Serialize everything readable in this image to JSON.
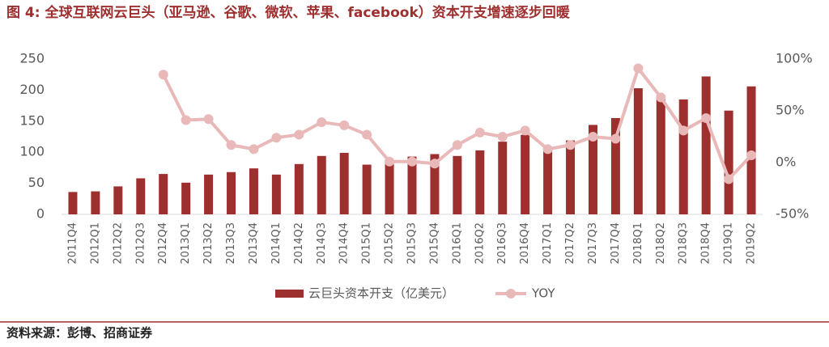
{
  "chart_data": {
    "type": "bar_line",
    "title": "图 4:  全球互联网云巨头（亚马逊、谷歌、微软、苹果、facebook）资本开支增速逐步回暖",
    "source": "资料来源：彭博、招商证券",
    "categories": [
      "2011Q4",
      "2012Q1",
      "2012Q2",
      "2012Q3",
      "2012Q4",
      "2013Q1",
      "2013Q2",
      "2013Q3",
      "2013Q4",
      "2014Q1",
      "2014Q2",
      "2014Q3",
      "2014Q4",
      "2015Q1",
      "2015Q2",
      "2015Q3",
      "2015Q4",
      "2016Q1",
      "2016Q2",
      "2016Q3",
      "2016Q4",
      "2017Q1",
      "2017Q2",
      "2017Q3",
      "2017Q4",
      "2018Q1",
      "2018Q2",
      "2018Q3",
      "2018Q4",
      "2019Q1",
      "2019Q2"
    ],
    "series": [
      {
        "name": "云巨头资本开支（亿美元）",
        "type": "bar",
        "color": "#9e2f2f",
        "values": [
          36,
          37,
          45,
          58,
          65,
          51,
          64,
          68,
          74,
          64,
          81,
          94,
          99,
          80,
          86,
          93,
          97,
          94,
          103,
          117,
          128,
          107,
          119,
          144,
          155,
          203,
          190,
          185,
          222,
          167,
          206
        ]
      },
      {
        "name": "YOY",
        "type": "line",
        "axis": "y2",
        "color": "#e9b8b8",
        "values": [
          null,
          null,
          null,
          null,
          85,
          41,
          42,
          17,
          13,
          24,
          27,
          39,
          36,
          27,
          1,
          1,
          -1,
          17,
          29,
          25,
          31,
          13,
          17,
          25,
          23,
          91,
          63,
          31,
          43,
          -16,
          7
        ]
      }
    ],
    "ylim": [
      0,
      250
    ],
    "yticks": [
      0,
      50,
      100,
      150,
      200,
      250
    ],
    "y2lim": [
      -50,
      100
    ],
    "y2ticks": [
      {
        "value": -50,
        "label": "-50%"
      },
      {
        "value": 0,
        "label": "0%"
      },
      {
        "value": 50,
        "label": "50%"
      },
      {
        "value": 100,
        "label": "100%"
      }
    ],
    "grid": false,
    "legend": "bottom"
  }
}
